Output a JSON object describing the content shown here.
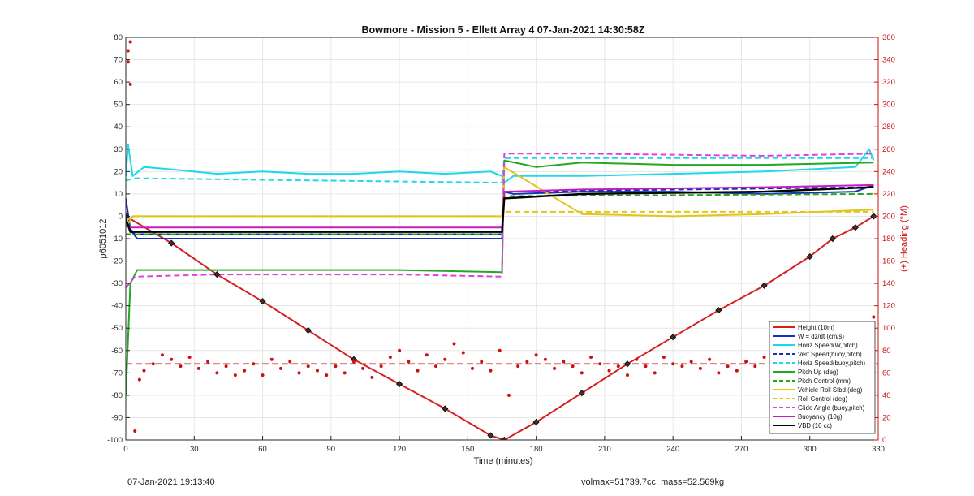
{
  "chart_data": {
    "type": "line",
    "title": "Bowmore - Mission 5 - Ellett Array 4 07-Jan-2021 14:30:58Z",
    "xlabel": "Time (minutes)",
    "ylabel": "p6051012",
    "ylabel_right": "(+) Heading (°M)",
    "xlim": [
      0,
      330
    ],
    "ylim": [
      -100,
      80
    ],
    "ylim_right": [
      0,
      360
    ],
    "xticks": [
      0,
      30,
      60,
      90,
      120,
      150,
      180,
      210,
      240,
      270,
      300,
      330
    ],
    "yticks": [
      80,
      70,
      60,
      50,
      40,
      30,
      20,
      10,
      0,
      -10,
      -20,
      -30,
      -40,
      -50,
      -60,
      -70,
      -80,
      -90,
      -100
    ],
    "yticks_right": [
      360,
      340,
      320,
      300,
      280,
      260,
      240,
      220,
      200,
      180,
      160,
      140,
      120,
      100,
      80,
      60,
      40,
      20,
      0
    ],
    "grid": true,
    "legend_position": "bottom-right",
    "series": [
      {
        "name": "Height (10m)",
        "color": "#d62020",
        "style": "solid",
        "x": [
          0,
          20,
          40,
          60,
          80,
          100,
          120,
          140,
          160,
          166,
          180,
          200,
          220,
          240,
          260,
          280,
          300,
          310,
          320,
          328
        ],
        "y": [
          0,
          -12,
          -26,
          -38,
          -51,
          -64,
          -75,
          -86,
          -98,
          -100,
          -92,
          -79,
          -66,
          -54,
          -42,
          -31,
          -18,
          -10,
          -5,
          0
        ]
      },
      {
        "name": "W = dz/dt (cm/s)",
        "color": "#1a2fb5",
        "style": "solid",
        "x": [
          0,
          2,
          5,
          10,
          30,
          60,
          90,
          120,
          150,
          165,
          166,
          170,
          200,
          240,
          280,
          320,
          328
        ],
        "y": [
          8,
          -6,
          -10,
          -10,
          -10,
          -10,
          -10,
          -10,
          -10,
          -10,
          11,
          10,
          11,
          11,
          10,
          11,
          14
        ]
      },
      {
        "name": "Horiz Speed(W,pitch)",
        "color": "#1cd8e8",
        "style": "solid",
        "x": [
          0,
          1,
          3,
          8,
          20,
          40,
          60,
          80,
          100,
          120,
          140,
          160,
          165,
          166,
          170,
          200,
          240,
          280,
          320,
          326,
          328
        ],
        "y": [
          18,
          32,
          18,
          22,
          21,
          19,
          20,
          19,
          19,
          20,
          19,
          20,
          18,
          15,
          18,
          18,
          19,
          20,
          22,
          30,
          25
        ]
      },
      {
        "name": "Vert Speed(buoy,pitch)",
        "color": "#1a2fb5",
        "style": "dashed",
        "x": [
          0,
          4,
          165,
          166,
          328
        ],
        "y": [
          -3,
          -8,
          -8,
          11,
          13
        ]
      },
      {
        "name": "Horiz Speed(buoy,pitch)",
        "color": "#1cd8e8",
        "style": "dashed",
        "x": [
          0,
          4,
          165,
          166,
          328
        ],
        "y": [
          16,
          17,
          15,
          26,
          26
        ]
      },
      {
        "name": "Pitch Up (deg)",
        "color": "#22a822",
        "style": "solid",
        "x": [
          0,
          2,
          5,
          40,
          80,
          120,
          165,
          166,
          180,
          200,
          240,
          280,
          328
        ],
        "y": [
          -80,
          -30,
          -24,
          -24,
          -24,
          -24,
          -25,
          25,
          22,
          24,
          23,
          23,
          24
        ]
      },
      {
        "name": "Pitch Control (mm)",
        "color": "#22a822",
        "style": "dashed",
        "x": [
          0,
          4,
          165,
          166,
          328
        ],
        "y": [
          -8,
          -8,
          -8,
          9,
          10
        ]
      },
      {
        "name": "Vehicle Roll Stbd (deg)",
        "color": "#e3c41a",
        "style": "solid",
        "x": [
          0,
          3,
          40,
          80,
          120,
          165,
          166,
          200,
          240,
          280,
          328
        ],
        "y": [
          -5,
          0,
          0,
          0,
          0,
          0,
          22,
          1,
          0,
          1,
          3
        ]
      },
      {
        "name": "Roll Control (deg)",
        "color": "#e3c41a",
        "style": "dashed",
        "x": [
          0,
          3,
          165,
          166,
          328
        ],
        "y": [
          -2,
          0,
          0,
          2,
          2
        ]
      },
      {
        "name": "Glide Angle (buoy,pitch)",
        "color": "#e040e0",
        "style": "dashed",
        "x": [
          0,
          4,
          40,
          120,
          165,
          166,
          200,
          280,
          328
        ],
        "y": [
          -32,
          -27,
          -26,
          -26,
          -27,
          28,
          28,
          27,
          28
        ]
      },
      {
        "name": "Buoyancy (10g)",
        "color": "#c21ec2",
        "style": "solid",
        "x": [
          0,
          2,
          165,
          166,
          200,
          280,
          328
        ],
        "y": [
          -4,
          -5,
          -5,
          11,
          12,
          13,
          14
        ]
      },
      {
        "name": "VBD (10 cc)",
        "color": "#000000",
        "style": "solid",
        "x": [
          0,
          2,
          165,
          166,
          200,
          280,
          328
        ],
        "y": [
          -1,
          -7,
          -7,
          8,
          10,
          11,
          13
        ]
      }
    ],
    "heading_series": {
      "name": "(+) Heading (°M)",
      "color": "#cc1111",
      "style": "dots",
      "axis": "right",
      "x": [
        1,
        1,
        2,
        2,
        4,
        6,
        8,
        12,
        16,
        20,
        24,
        28,
        32,
        36,
        40,
        44,
        48,
        52,
        56,
        60,
        64,
        68,
        72,
        76,
        80,
        84,
        88,
        92,
        96,
        100,
        104,
        108,
        112,
        116,
        120,
        124,
        128,
        132,
        136,
        140,
        144,
        148,
        152,
        156,
        160,
        164,
        168,
        172,
        176,
        180,
        184,
        188,
        192,
        196,
        200,
        204,
        208,
        212,
        216,
        220,
        224,
        228,
        232,
        236,
        240,
        244,
        248,
        252,
        256,
        260,
        264,
        268,
        272,
        276,
        280,
        284,
        288,
        292,
        296,
        300,
        304,
        308,
        312,
        316,
        320,
        324,
        328
      ],
      "y": [
        348,
        338,
        356,
        318,
        8,
        54,
        62,
        68,
        76,
        72,
        66,
        74,
        64,
        70,
        60,
        66,
        58,
        62,
        68,
        58,
        72,
        64,
        70,
        60,
        66,
        62,
        58,
        66,
        60,
        70,
        64,
        56,
        66,
        74,
        80,
        70,
        62,
        76,
        66,
        72,
        86,
        78,
        64,
        70,
        62,
        80,
        40,
        66,
        70,
        76,
        72,
        64,
        70,
        66,
        60,
        74,
        68,
        62,
        66,
        58,
        72,
        66,
        60,
        74,
        68,
        66,
        70,
        64,
        72,
        60,
        66,
        62,
        70,
        66,
        74,
        64,
        60,
        70,
        56,
        64,
        72,
        66,
        70,
        60,
        68,
        96,
        110
      ]
    },
    "heading_mean": {
      "name": "Heading mean",
      "axis": "right",
      "y": 68
    }
  },
  "footer": {
    "left": "07-Jan-2021 19:13:40",
    "right": "volmax=51739.7cc, mass=52.569kg"
  }
}
